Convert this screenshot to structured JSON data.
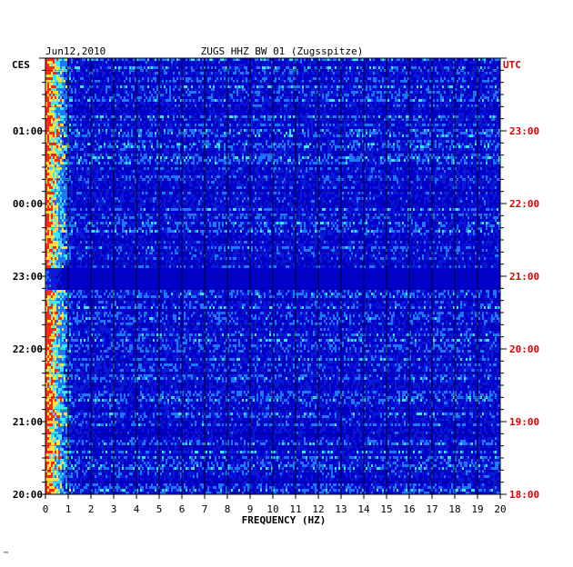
{
  "header": {
    "date": "Jun12,2010",
    "station": "ZUGS HHZ BW 01 (Zugsspitze)"
  },
  "corner_mark": "™",
  "chart_data": {
    "type": "heatmap",
    "title": "ZUGS HHZ BW 01 (Zugsspitze)",
    "date": "Jun12,2010",
    "xlabel": "FREQUENCY (HZ)",
    "xlim": [
      0,
      20
    ],
    "x_ticks": [
      "0",
      "1",
      "2",
      "3",
      "4",
      "5",
      "6",
      "7",
      "8",
      "9",
      "10",
      "11",
      "12",
      "13",
      "14",
      "15",
      "16",
      "17",
      "18",
      "19",
      "20"
    ],
    "y_left_label": "CES",
    "y_right_label": "UTC",
    "y_left_ticks": [
      "01:00",
      "00:00",
      "23:00",
      "22:00",
      "21:00",
      "20:00"
    ],
    "y_right_ticks": [
      "23:00",
      "22:00",
      "21:00",
      "20:00",
      "19:00",
      "18:00"
    ],
    "y_range_hours": 6,
    "quiet_band_utc": [
      "20:50",
      "21:08"
    ],
    "colors": {
      "background": "#0000c8",
      "low": "#0a1ad8",
      "mid": "#1e78ff",
      "high": "#3ce6ff",
      "peak": "#ffe040",
      "hot": "#ff2a10",
      "right_axis": "#dd0000",
      "grid": "#000000"
    }
  }
}
